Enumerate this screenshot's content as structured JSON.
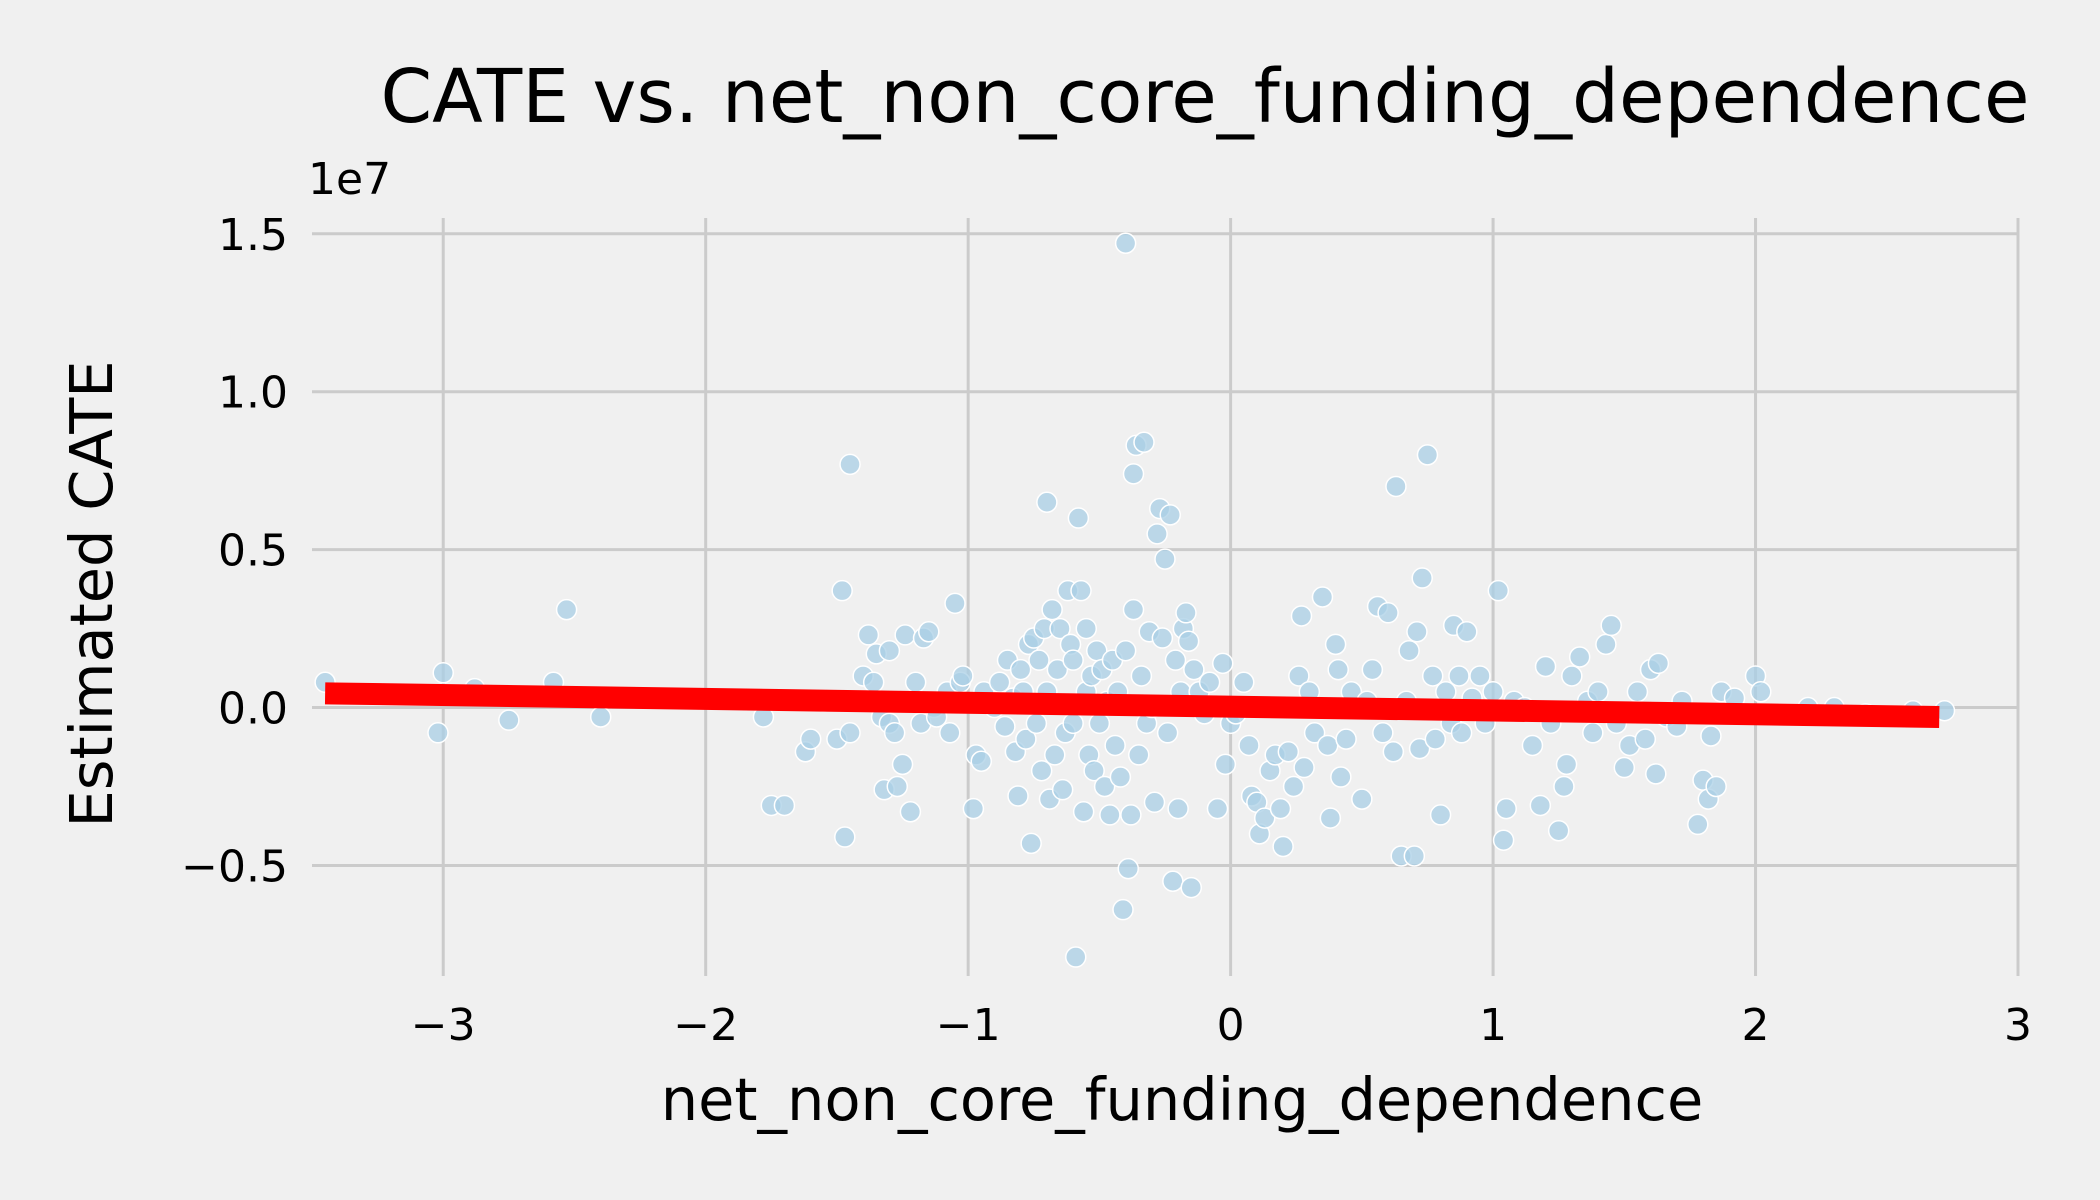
{
  "chart_data": {
    "type": "scatter",
    "title": "CATE vs. net_non_core_funding_dependence",
    "xlabel": "net_non_core_funding_dependence",
    "ylabel": "Estimated CATE",
    "y_offset_text": "1e7",
    "xlim": [
      -3.5,
      3.0
    ],
    "ylim": [
      -0.85,
      1.55
    ],
    "y_scale_factor": 10000000,
    "grid": true,
    "x_ticks": [
      -3,
      -2,
      -1,
      0,
      1,
      2,
      3
    ],
    "x_tick_labels": [
      "−3",
      "−2",
      "−1",
      "0",
      "1",
      "2",
      "3"
    ],
    "y_ticks": [
      -0.5,
      0.0,
      0.5,
      1.0,
      1.5
    ],
    "y_tick_labels": [
      "−0.5",
      "0.0",
      "0.5",
      "1.0",
      "1.5"
    ],
    "scatter_color": "#a9cfe5",
    "line_color": "#ff0000",
    "background_color": "#f0f0f0",
    "grid_color": "#cbcbcb",
    "trend_line": {
      "x": [
        -3.45,
        2.7
      ],
      "y": [
        0.045,
        -0.03
      ]
    },
    "points": [
      [
        -3.45,
        0.08
      ],
      [
        -3.0,
        0.11
      ],
      [
        -3.02,
        -0.08
      ],
      [
        -2.88,
        0.06
      ],
      [
        -2.75,
        -0.04
      ],
      [
        -2.58,
        0.08
      ],
      [
        -2.53,
        0.31
      ],
      [
        -2.4,
        -0.03
      ],
      [
        -1.78,
        -0.03
      ],
      [
        -1.75,
        -0.31
      ],
      [
        -1.7,
        -0.31
      ],
      [
        -1.62,
        -0.14
      ],
      [
        -1.6,
        -0.1
      ],
      [
        -1.55,
        0.02
      ],
      [
        -1.5,
        -0.1
      ],
      [
        -1.48,
        0.37
      ],
      [
        -1.47,
        -0.41
      ],
      [
        -1.45,
        0.77
      ],
      [
        -1.45,
        -0.08
      ],
      [
        -1.4,
        0.1
      ],
      [
        -1.38,
        0.23
      ],
      [
        -1.36,
        0.08
      ],
      [
        -1.35,
        0.17
      ],
      [
        -1.33,
        -0.03
      ],
      [
        -1.32,
        -0.26
      ],
      [
        -1.3,
        0.18
      ],
      [
        -1.3,
        -0.05
      ],
      [
        -1.28,
        -0.08
      ],
      [
        -1.27,
        -0.25
      ],
      [
        -1.25,
        -0.18
      ],
      [
        -1.24,
        0.23
      ],
      [
        -1.22,
        -0.33
      ],
      [
        -1.2,
        0.08
      ],
      [
        -1.18,
        -0.05
      ],
      [
        -1.17,
        0.22
      ],
      [
        -1.15,
        0.24
      ],
      [
        -1.13,
        0.0
      ],
      [
        -1.12,
        -0.03
      ],
      [
        -1.08,
        0.05
      ],
      [
        -1.07,
        -0.08
      ],
      [
        -1.05,
        0.33
      ],
      [
        -1.03,
        0.08
      ],
      [
        -1.02,
        0.1
      ],
      [
        -0.98,
        -0.32
      ],
      [
        -0.97,
        -0.15
      ],
      [
        -0.95,
        -0.17
      ],
      [
        -0.94,
        0.05
      ],
      [
        -0.9,
        0.0
      ],
      [
        -0.88,
        0.08
      ],
      [
        -0.86,
        -0.06
      ],
      [
        -0.85,
        0.15
      ],
      [
        -0.83,
        0.03
      ],
      [
        -0.82,
        -0.14
      ],
      [
        -0.81,
        -0.28
      ],
      [
        -0.8,
        0.12
      ],
      [
        -0.79,
        0.05
      ],
      [
        -0.78,
        -0.1
      ],
      [
        -0.77,
        0.2
      ],
      [
        -0.76,
        -0.43
      ],
      [
        -0.75,
        0.22
      ],
      [
        -0.74,
        -0.05
      ],
      [
        -0.73,
        0.15
      ],
      [
        -0.72,
        -0.2
      ],
      [
        -0.71,
        0.25
      ],
      [
        -0.7,
        0.65
      ],
      [
        -0.7,
        0.05
      ],
      [
        -0.69,
        -0.29
      ],
      [
        -0.68,
        0.31
      ],
      [
        -0.67,
        -0.15
      ],
      [
        -0.66,
        0.12
      ],
      [
        -0.65,
        0.25
      ],
      [
        -0.64,
        -0.26
      ],
      [
        -0.63,
        -0.08
      ],
      [
        -0.62,
        0.37
      ],
      [
        -0.61,
        0.2
      ],
      [
        -0.6,
        -0.05
      ],
      [
        -0.6,
        0.15
      ],
      [
        -0.59,
        -0.79
      ],
      [
        -0.58,
        0.6
      ],
      [
        -0.57,
        0.37
      ],
      [
        -0.56,
        -0.33
      ],
      [
        -0.55,
        0.05
      ],
      [
        -0.55,
        0.25
      ],
      [
        -0.54,
        -0.15
      ],
      [
        -0.53,
        0.1
      ],
      [
        -0.52,
        -0.2
      ],
      [
        -0.51,
        0.18
      ],
      [
        -0.5,
        -0.05
      ],
      [
        -0.49,
        0.12
      ],
      [
        -0.48,
        -0.25
      ],
      [
        -0.47,
        0.02
      ],
      [
        -0.46,
        -0.34
      ],
      [
        -0.45,
        0.15
      ],
      [
        -0.44,
        -0.12
      ],
      [
        -0.43,
        0.05
      ],
      [
        -0.42,
        -0.22
      ],
      [
        -0.41,
        -0.64
      ],
      [
        -0.4,
        1.47
      ],
      [
        -0.4,
        0.18
      ],
      [
        -0.39,
        -0.51
      ],
      [
        -0.38,
        -0.34
      ],
      [
        -0.37,
        0.31
      ],
      [
        -0.37,
        0.74
      ],
      [
        -0.36,
        0.83
      ],
      [
        -0.35,
        -0.15
      ],
      [
        -0.34,
        0.1
      ],
      [
        -0.33,
        0.84
      ],
      [
        -0.32,
        -0.05
      ],
      [
        -0.31,
        0.24
      ],
      [
        -0.3,
        0.0
      ],
      [
        -0.29,
        -0.3
      ],
      [
        -0.28,
        0.55
      ],
      [
        -0.27,
        0.63
      ],
      [
        -0.26,
        0.22
      ],
      [
        -0.25,
        0.47
      ],
      [
        -0.24,
        -0.08
      ],
      [
        -0.23,
        0.61
      ],
      [
        -0.22,
        -0.55
      ],
      [
        -0.21,
        0.15
      ],
      [
        -0.2,
        -0.32
      ],
      [
        -0.19,
        0.05
      ],
      [
        -0.18,
        0.25
      ],
      [
        -0.17,
        0.3
      ],
      [
        -0.16,
        0.21
      ],
      [
        -0.15,
        -0.57
      ],
      [
        -0.14,
        0.12
      ],
      [
        -0.12,
        0.05
      ],
      [
        -0.1,
        -0.02
      ],
      [
        -0.08,
        0.08
      ],
      [
        -0.05,
        -0.32
      ],
      [
        -0.03,
        0.14
      ],
      [
        -0.02,
        -0.18
      ],
      [
        0.0,
        -0.05
      ],
      [
        0.02,
        -0.02
      ],
      [
        0.05,
        0.08
      ],
      [
        0.07,
        -0.12
      ],
      [
        0.08,
        -0.28
      ],
      [
        0.1,
        -0.3
      ],
      [
        0.11,
        -0.4
      ],
      [
        0.13,
        -0.35
      ],
      [
        0.15,
        -0.2
      ],
      [
        0.17,
        -0.15
      ],
      [
        0.19,
        -0.32
      ],
      [
        0.2,
        -0.44
      ],
      [
        0.22,
        -0.14
      ],
      [
        0.24,
        -0.25
      ],
      [
        0.26,
        0.1
      ],
      [
        0.27,
        0.29
      ],
      [
        0.28,
        -0.19
      ],
      [
        0.3,
        0.05
      ],
      [
        0.32,
        -0.08
      ],
      [
        0.35,
        0.35
      ],
      [
        0.37,
        -0.12
      ],
      [
        0.38,
        -0.35
      ],
      [
        0.4,
        0.2
      ],
      [
        0.41,
        0.12
      ],
      [
        0.42,
        -0.22
      ],
      [
        0.44,
        -0.1
      ],
      [
        0.46,
        0.05
      ],
      [
        0.5,
        -0.29
      ],
      [
        0.52,
        0.02
      ],
      [
        0.54,
        0.12
      ],
      [
        0.56,
        0.32
      ],
      [
        0.58,
        -0.08
      ],
      [
        0.6,
        0.3
      ],
      [
        0.62,
        -0.14
      ],
      [
        0.63,
        0.7
      ],
      [
        0.65,
        -0.47
      ],
      [
        0.67,
        0.02
      ],
      [
        0.68,
        0.18
      ],
      [
        0.7,
        -0.47
      ],
      [
        0.71,
        0.24
      ],
      [
        0.72,
        -0.13
      ],
      [
        0.73,
        0.41
      ],
      [
        0.75,
        0.8
      ],
      [
        0.77,
        0.1
      ],
      [
        0.78,
        -0.1
      ],
      [
        0.8,
        -0.34
      ],
      [
        0.82,
        0.05
      ],
      [
        0.84,
        -0.05
      ],
      [
        0.85,
        0.26
      ],
      [
        0.87,
        0.1
      ],
      [
        0.88,
        -0.08
      ],
      [
        0.9,
        0.24
      ],
      [
        0.92,
        0.03
      ],
      [
        0.95,
        0.1
      ],
      [
        0.97,
        -0.05
      ],
      [
        1.0,
        0.05
      ],
      [
        1.02,
        0.37
      ],
      [
        1.04,
        -0.42
      ],
      [
        1.05,
        -0.32
      ],
      [
        1.08,
        0.02
      ],
      [
        1.12,
        0.0
      ],
      [
        1.15,
        -0.12
      ],
      [
        1.18,
        -0.31
      ],
      [
        1.2,
        0.13
      ],
      [
        1.22,
        -0.05
      ],
      [
        1.25,
        -0.39
      ],
      [
        1.27,
        -0.25
      ],
      [
        1.28,
        -0.18
      ],
      [
        1.3,
        0.1
      ],
      [
        1.33,
        0.16
      ],
      [
        1.36,
        0.02
      ],
      [
        1.38,
        -0.08
      ],
      [
        1.4,
        0.05
      ],
      [
        1.43,
        0.2
      ],
      [
        1.45,
        0.26
      ],
      [
        1.47,
        -0.05
      ],
      [
        1.5,
        -0.19
      ],
      [
        1.52,
        -0.12
      ],
      [
        1.55,
        0.05
      ],
      [
        1.58,
        -0.1
      ],
      [
        1.6,
        0.12
      ],
      [
        1.62,
        -0.21
      ],
      [
        1.63,
        0.14
      ],
      [
        1.66,
        -0.03
      ],
      [
        1.7,
        -0.06
      ],
      [
        1.72,
        0.02
      ],
      [
        1.78,
        -0.37
      ],
      [
        1.8,
        -0.23
      ],
      [
        1.82,
        -0.29
      ],
      [
        1.83,
        -0.09
      ],
      [
        1.85,
        -0.25
      ],
      [
        1.87,
        0.05
      ],
      [
        1.92,
        0.03
      ],
      [
        2.0,
        0.1
      ],
      [
        2.02,
        0.05
      ],
      [
        2.2,
        0.0
      ],
      [
        2.3,
        0.0
      ],
      [
        2.42,
        -0.02
      ],
      [
        2.6,
        -0.01
      ],
      [
        2.72,
        -0.01
      ]
    ]
  }
}
